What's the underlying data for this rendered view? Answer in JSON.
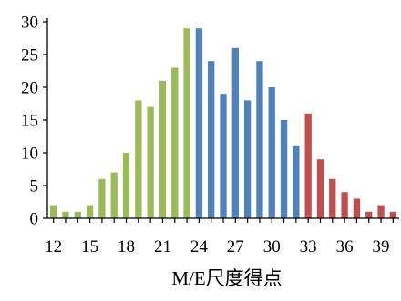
{
  "chart_data": {
    "type": "bar",
    "title": "",
    "xlabel": "M/E尺度得点",
    "ylabel": "",
    "ylim": [
      0,
      30
    ],
    "yticks": [
      0,
      5,
      10,
      15,
      20,
      25,
      30
    ],
    "xlim": [
      11.5,
      40.5
    ],
    "xticks": [
      12,
      15,
      18,
      21,
      24,
      27,
      30,
      33,
      36,
      39
    ],
    "grid": false,
    "legend": "none",
    "colors": {
      "green": "#9BBB59",
      "blue": "#4F81BD",
      "red": "#C0504D"
    },
    "x": [
      12,
      13,
      14,
      15,
      16,
      17,
      18,
      19,
      20,
      21,
      22,
      23,
      24,
      25,
      26,
      27,
      28,
      29,
      30,
      31,
      32,
      33,
      34,
      35,
      36,
      37,
      38,
      39,
      40
    ],
    "values": [
      2,
      1,
      1,
      2,
      6,
      7,
      10,
      18,
      17,
      21,
      23,
      29,
      29,
      24,
      19,
      26,
      18,
      24,
      20,
      15,
      11,
      16,
      9,
      6,
      4,
      3,
      1,
      2,
      1
    ],
    "bar_colors": [
      "green",
      "green",
      "green",
      "green",
      "green",
      "green",
      "green",
      "green",
      "green",
      "green",
      "green",
      "green",
      "blue",
      "blue",
      "blue",
      "blue",
      "blue",
      "blue",
      "blue",
      "blue",
      "blue",
      "red",
      "red",
      "red",
      "red",
      "red",
      "red",
      "red",
      "red"
    ]
  }
}
